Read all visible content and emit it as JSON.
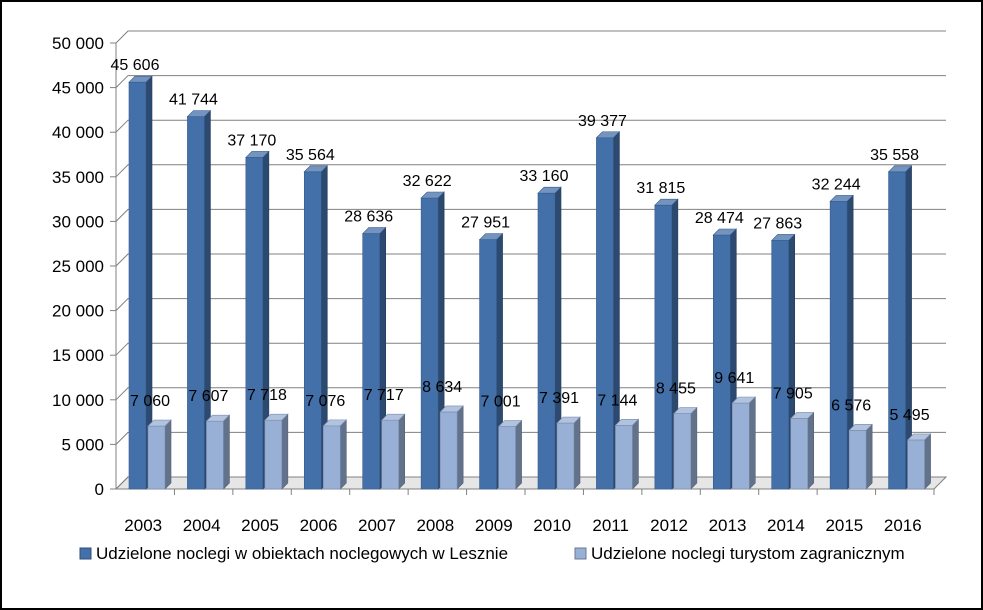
{
  "chart_data": {
    "type": "bar",
    "title": "",
    "xlabel": "",
    "ylabel": "",
    "ylim": [
      0,
      50000
    ],
    "yticks": [
      0,
      5000,
      10000,
      15000,
      20000,
      25000,
      30000,
      35000,
      40000,
      45000,
      50000
    ],
    "ytick_labels": [
      "0",
      "5 000",
      "10 000",
      "15 000",
      "20 000",
      "25 000",
      "30 000",
      "35 000",
      "40 000",
      "45 000",
      "50 000"
    ],
    "grid": true,
    "legend_position": "bottom",
    "style": "3d-cylinder-columns",
    "categories": [
      "2003",
      "2004",
      "2005",
      "2006",
      "2007",
      "2008",
      "2009",
      "2010",
      "2011",
      "2012",
      "2013",
      "2014",
      "2015",
      "2016"
    ],
    "series": [
      {
        "name": "Udzielone noclegi w obiektach noclegowych w Lesznie",
        "color": "#4470AA",
        "values": [
          45606,
          41744,
          37170,
          35564,
          28636,
          32622,
          27951,
          33160,
          39377,
          31815,
          28474,
          27863,
          32244,
          35558
        ],
        "labels": [
          "45 606",
          "41 744",
          "37 170",
          "35 564",
          "28 636",
          "32 622",
          "27 951",
          "33 160",
          "39 377",
          "31 815",
          "28 474",
          "27 863",
          "32 244",
          "35 558"
        ]
      },
      {
        "name": "Udzielone noclegi turystom zagranicznym",
        "color": "#98AFD6",
        "values": [
          7060,
          7607,
          7718,
          7076,
          7717,
          8634,
          7001,
          7391,
          7144,
          8455,
          9641,
          7905,
          6576,
          5495
        ],
        "labels": [
          "7 060",
          "7 607",
          "7 718",
          "7 076",
          "7 717",
          "8 634",
          "7 001",
          "7 391",
          "7 144",
          "8 455",
          "9 641",
          "7 905",
          "6 576",
          "5 495"
        ]
      }
    ]
  }
}
